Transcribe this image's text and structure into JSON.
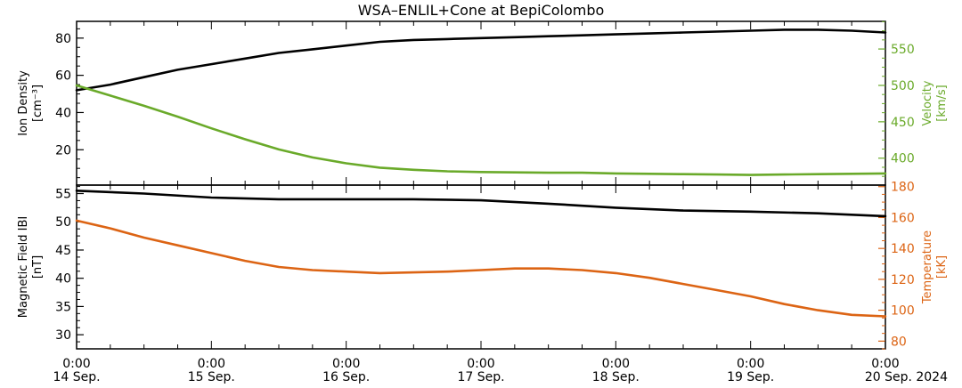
{
  "chart_data": {
    "title": "WSA–ENLIL+Cone at BepiColombo",
    "type": "line",
    "x": {
      "range_days": [
        0,
        6
      ],
      "ticks": [
        {
          "day": 0,
          "time": "0:00",
          "date": "14 Sep."
        },
        {
          "day": 1,
          "time": "0:00",
          "date": "15 Sep."
        },
        {
          "day": 2,
          "time": "0:00",
          "date": "16 Sep."
        },
        {
          "day": 3,
          "time": "0:00",
          "date": "17 Sep."
        },
        {
          "day": 4,
          "time": "0:00",
          "date": "18 Sep."
        },
        {
          "day": 5,
          "time": "0:00",
          "date": "19 Sep."
        },
        {
          "day": 6,
          "time": "0:00",
          "date": "20 Sep. 2024"
        }
      ]
    },
    "panels": [
      {
        "left_axis": {
          "label": "Ion Density",
          "unit": "[cm⁻³]",
          "range": [
            1,
            89
          ],
          "ticks": [
            20,
            40,
            60,
            80
          ],
          "tick_labels": [
            "20",
            "40",
            "60",
            "80"
          ],
          "color": "#000000"
        },
        "right_axis": {
          "label": "Velocity",
          "unit": "[km/s]",
          "range": [
            363,
            588
          ],
          "ticks": [
            400,
            450,
            500,
            550
          ],
          "tick_labels": [
            "400",
            "450",
            "500",
            "550"
          ],
          "color": "#6aaa2a"
        },
        "series": [
          {
            "name": "Ion Density",
            "axis": "left",
            "color": "#000000",
            "x": [
              0,
              0.25,
              0.5,
              0.75,
              1,
              1.25,
              1.5,
              1.75,
              2,
              2.25,
              2.5,
              2.75,
              3,
              3.25,
              3.5,
              3.75,
              4,
              4.25,
              4.5,
              4.75,
              5,
              5.25,
              5.5,
              5.75,
              6
            ],
            "values": [
              52,
              55,
              59,
              63,
              66,
              69,
              72,
              74,
              76,
              78,
              79,
              79.5,
              80,
              80.5,
              81,
              81.5,
              82,
              82.5,
              83,
              83.5,
              84,
              84.5,
              84.5,
              84,
              83
            ]
          },
          {
            "name": "Velocity",
            "axis": "right",
            "color": "#6aaa2a",
            "x": [
              0,
              0.25,
              0.5,
              0.75,
              1,
              1.25,
              1.5,
              1.75,
              2,
              2.25,
              2.5,
              2.75,
              3,
              3.25,
              3.5,
              3.75,
              4,
              4.25,
              4.5,
              4.75,
              5,
              5.25,
              5.5,
              5.75,
              6
            ],
            "values": [
              500,
              486,
              472,
              457,
              441,
              426,
              412,
              401,
              393,
              387,
              384,
              382,
              381,
              380.5,
              380,
              380,
              379,
              378.5,
              378,
              377.5,
              377,
              377.5,
              378,
              378.5,
              379
            ]
          }
        ]
      },
      {
        "left_axis": {
          "label": "Magnetic Field IBI",
          "unit": "[nT]",
          "range": [
            27.5,
            56.5
          ],
          "ticks": [
            30,
            35,
            40,
            45,
            50,
            55
          ],
          "tick_labels": [
            "30",
            "35",
            "40",
            "45",
            "50",
            "55"
          ],
          "color": "#000000"
        },
        "right_axis": {
          "label": "Temperature",
          "unit": "[kK]",
          "range": [
            75,
            181
          ],
          "ticks": [
            80,
            100,
            120,
            140,
            160,
            180
          ],
          "tick_labels": [
            "80",
            "100",
            "120",
            "140",
            "160",
            "180"
          ],
          "color": "#dc6414"
        },
        "series": [
          {
            "name": "Magnetic Field IBI",
            "axis": "left",
            "color": "#000000",
            "x": [
              0,
              0.5,
              1,
              1.5,
              2,
              2.5,
              3,
              3.5,
              4,
              4.5,
              5,
              5.5,
              6
            ],
            "values": [
              55.5,
              55,
              54.3,
              54,
              54,
              54,
              53.8,
              53.2,
              52.5,
              52,
              51.8,
              51.5,
              51
            ]
          },
          {
            "name": "Temperature",
            "axis": "right",
            "color": "#dc6414",
            "x": [
              0,
              0.25,
              0.5,
              0.75,
              1,
              1.25,
              1.5,
              1.75,
              2,
              2.25,
              2.5,
              2.75,
              3,
              3.25,
              3.5,
              3.75,
              4,
              4.25,
              4.5,
              4.75,
              5,
              5.25,
              5.5,
              5.75,
              6
            ],
            "values": [
              158,
              153,
              147,
              142,
              137,
              132,
              128,
              126,
              125,
              124,
              124.5,
              125,
              126,
              127,
              127,
              126,
              124,
              121,
              117,
              113,
              109,
              104,
              100,
              97,
              96
            ]
          }
        ]
      }
    ]
  }
}
